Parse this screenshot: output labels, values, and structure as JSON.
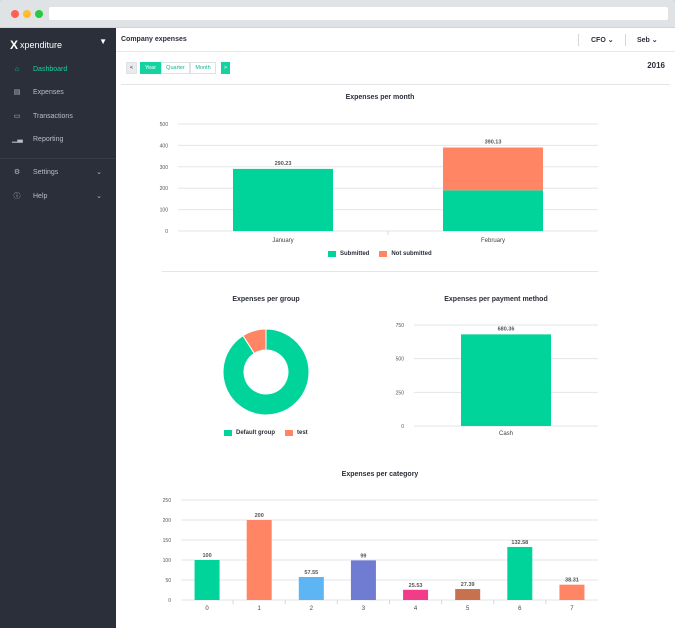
{
  "browser": {
    "dot_colors": [
      "#ff5f57",
      "#febc2e",
      "#28c840"
    ]
  },
  "sidebar": {
    "brand": "xpenditure",
    "brand_mark": "X",
    "items": [
      {
        "label": "Dashboard",
        "icon": "home-icon",
        "active": true
      },
      {
        "label": "Expenses",
        "icon": "document-icon"
      },
      {
        "label": "Transactions",
        "icon": "credit-card-icon"
      },
      {
        "label": "Reporting",
        "icon": "bar-chart-icon"
      },
      {
        "label": "Settings",
        "icon": "gear-icon"
      },
      {
        "label": "Help",
        "icon": "help-icon"
      }
    ]
  },
  "header": {
    "title": "Company expenses",
    "role_menu": "CFO",
    "user_menu": "Seb"
  },
  "period": {
    "prev": "<",
    "year": "Year",
    "quarter": "Quarter",
    "month": "Month",
    "next": ">",
    "current_year": "2016"
  },
  "colors": {
    "accent": "#14d3a0",
    "submitted": "#00d49a",
    "not_submitted": "#ff8564",
    "sidebar_bg": "#2b2f3a"
  },
  "chart_data": [
    {
      "type": "bar",
      "title": "Expenses per month",
      "categories": [
        "January",
        "February"
      ],
      "series": [
        {
          "name": "Submitted",
          "values": [
            290.23,
            190.13
          ],
          "color": "#00d49a"
        },
        {
          "name": "Not submitted",
          "values": [
            0,
            200
          ],
          "color": "#ff8564"
        }
      ],
      "totals": [
        "290.23",
        "390.13"
      ],
      "ylim": [
        0,
        500
      ],
      "yticks": [
        "0",
        "100",
        "200",
        "300",
        "400",
        "500"
      ],
      "stacked": true,
      "legend": "bottom"
    },
    {
      "type": "pie",
      "title": "Expenses per group",
      "donut": true,
      "labels": [
        "Default group",
        "test"
      ],
      "values": [
        91,
        9
      ],
      "colors": [
        "#00d49a",
        "#ff8564"
      ],
      "legend": "bottom"
    },
    {
      "type": "bar",
      "title": "Expenses per payment method",
      "categories": [
        "Cash"
      ],
      "values": [
        680.36
      ],
      "labels": [
        "680.36"
      ],
      "ylim": [
        0,
        750
      ],
      "yticks": [
        "0",
        "250",
        "500",
        "750"
      ],
      "color": "#00d49a"
    },
    {
      "type": "bar",
      "title": "Expenses per category",
      "categories": [
        "0",
        "1",
        "2",
        "3",
        "4",
        "5",
        "6",
        "7"
      ],
      "values": [
        100,
        200,
        57.55,
        99,
        25.53,
        27.39,
        132.58,
        38.31
      ],
      "labels": [
        "100",
        "200",
        "57.55",
        "99",
        "25.53",
        "27.39",
        "132.58",
        "38.31"
      ],
      "colors": [
        "#00d49a",
        "#ff8564",
        "#5db5f4",
        "#6f7cd1",
        "#f23c8a",
        "#c8714f",
        "#00d49a",
        "#ff8564"
      ],
      "ylim": [
        0,
        250
      ],
      "yticks": [
        "0",
        "50",
        "100",
        "150",
        "200",
        "250"
      ]
    }
  ]
}
